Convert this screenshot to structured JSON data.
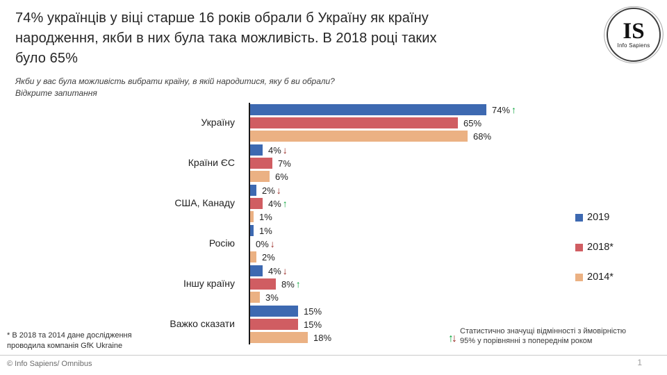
{
  "header": {
    "title_line1": "74% українців у віці старше 16 років обрали б Україну як країну",
    "title_line2": "народження, якби в них була така можливість. В 2018 році таких",
    "title_line3": "було 65%",
    "subtitle_line1": "Якби у вас була можливість вибрати країну, в якій народитися, яку б ви обрали?",
    "subtitle_line2": "Відкрите запитання"
  },
  "logo": {
    "monogram": "IS",
    "name": "Info Sapiens"
  },
  "chart_data": {
    "type": "bar",
    "orientation": "horizontal",
    "categories": [
      "Україну",
      "Країни ЄС",
      "США, Канаду",
      "Росію",
      "Іншу країну",
      "Важко сказати"
    ],
    "series": [
      {
        "name": "2019",
        "color": "#3D69B1",
        "values": [
          74,
          4,
          2,
          1,
          4,
          15
        ],
        "arrows": [
          "up",
          "down",
          "down",
          null,
          "down",
          null
        ]
      },
      {
        "name": "2018*",
        "color": "#D05D62",
        "values": [
          65,
          7,
          4,
          0,
          8,
          15
        ],
        "arrows": [
          null,
          null,
          "up",
          "down",
          "up",
          null
        ]
      },
      {
        "name": "2014*",
        "color": "#EBB183",
        "values": [
          68,
          6,
          1,
          2,
          3,
          18
        ],
        "arrows": [
          null,
          null,
          null,
          null,
          null,
          null
        ]
      }
    ],
    "value_suffix": "%",
    "xlim": [
      0,
      80
    ],
    "grid": false,
    "legend_position": "right",
    "arrow_colors": {
      "up": "#0CA43C",
      "down": "#97241E"
    }
  },
  "footnote": "* В 2018 та 2014 дане дослідження проводила компанія GfK Ukraine",
  "significance_note": "Статистично значущі відмінності з ймовірністю 95% у порівнянні з попереднім роком",
  "footer": {
    "source": "© Info Sapiens/ Omnibus",
    "page": "1"
  }
}
